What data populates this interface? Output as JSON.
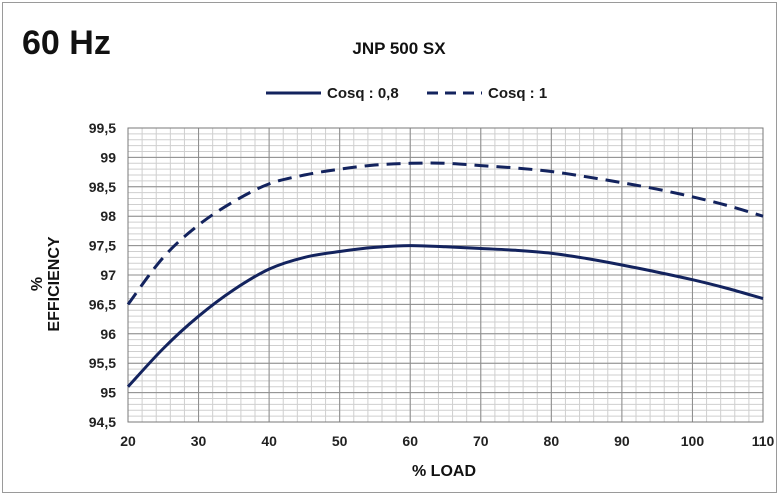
{
  "frequency_label": "60 Hz",
  "chart_data": {
    "type": "line",
    "title": "JNP 500 SX",
    "xlabel": "% LOAD",
    "ylabel_line1": "%",
    "ylabel_line2": "EFFICIENCY",
    "xlim": [
      20,
      110
    ],
    "ylim": [
      94.5,
      99.5
    ],
    "x_ticks": [
      "20",
      "30",
      "40",
      "50",
      "60",
      "70",
      "80",
      "90",
      "100",
      "110"
    ],
    "y_ticks": [
      "94,5",
      "95",
      "95,5",
      "96",
      "96,5",
      "97",
      "97,5",
      "98",
      "98,5",
      "99",
      "99,5"
    ],
    "grid": true,
    "legend_position": "top-center",
    "series": [
      {
        "name": "Cosq : 0,8",
        "style": "solid",
        "color": "#13235e",
        "x": [
          20,
          25,
          30,
          35,
          40,
          45,
          50,
          55,
          60,
          65,
          70,
          75,
          80,
          85,
          90,
          95,
          100,
          105,
          110
        ],
        "y": [
          95.1,
          95.75,
          96.3,
          96.75,
          97.1,
          97.3,
          97.4,
          97.47,
          97.5,
          97.48,
          97.45,
          97.42,
          97.37,
          97.28,
          97.17,
          97.05,
          96.92,
          96.77,
          96.6
        ]
      },
      {
        "name": "Cosq : 1",
        "style": "dashed",
        "color": "#13235e",
        "x": [
          20,
          25,
          30,
          35,
          40,
          45,
          50,
          55,
          60,
          65,
          70,
          75,
          80,
          85,
          90,
          95,
          100,
          105,
          110
        ],
        "y": [
          96.5,
          97.3,
          97.85,
          98.25,
          98.55,
          98.7,
          98.8,
          98.87,
          98.9,
          98.9,
          98.86,
          98.82,
          98.76,
          98.67,
          98.57,
          98.46,
          98.33,
          98.18,
          98.0
        ]
      }
    ]
  }
}
